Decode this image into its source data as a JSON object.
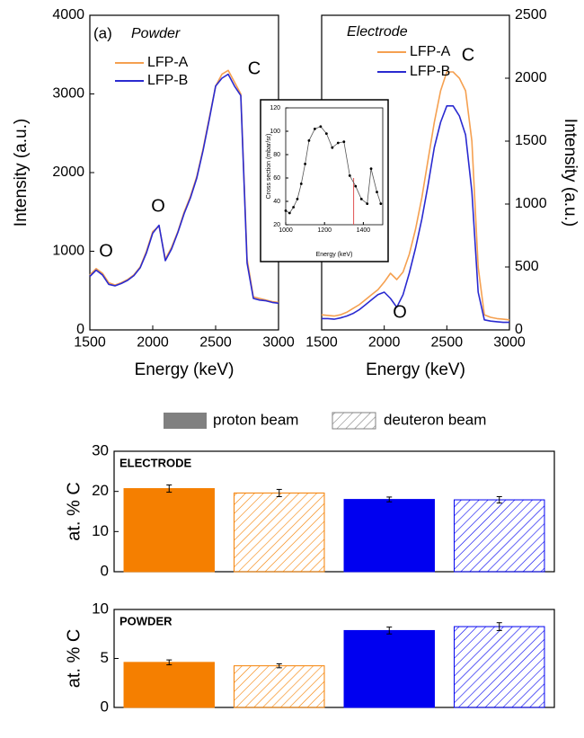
{
  "chart_data": [
    {
      "type": "line",
      "annotations": [
        "(a)",
        "Powder",
        "O",
        "O",
        "C"
      ],
      "x_label": "Energy (keV)",
      "y_label": "Intensity (a.u.)",
      "x": [
        1500,
        1550,
        1600,
        1650,
        1700,
        1750,
        1800,
        1850,
        1900,
        1950,
        2000,
        2050,
        2100,
        2150,
        2200,
        2250,
        2300,
        2350,
        2400,
        2450,
        2500,
        2550,
        2600,
        2650,
        2700,
        2750,
        2800,
        2850,
        2900,
        2950,
        3000
      ],
      "series": [
        {
          "name": "LFP-A",
          "color": "#f5a050",
          "values": [
            700,
            780,
            720,
            600,
            570,
            600,
            640,
            700,
            800,
            1000,
            1250,
            1320,
            900,
            1050,
            1250,
            1500,
            1700,
            1950,
            2300,
            2700,
            3100,
            3250,
            3300,
            3150,
            3000,
            900,
            420,
            400,
            380,
            360,
            350
          ]
        },
        {
          "name": "LFP-B",
          "color": "#2a2ad0",
          "values": [
            680,
            760,
            700,
            580,
            560,
            590,
            630,
            690,
            790,
            980,
            1230,
            1330,
            880,
            1030,
            1240,
            1480,
            1680,
            1930,
            2280,
            2680,
            3100,
            3200,
            3250,
            3100,
            2980,
            850,
            400,
            380,
            370,
            350,
            340
          ]
        }
      ],
      "xlim": [
        1500,
        3000
      ],
      "xticks": [
        1500,
        2000,
        2500,
        3000
      ],
      "ylim": [
        0,
        4000
      ],
      "yticks": [
        0,
        1000,
        2000,
        3000,
        4000
      ]
    },
    {
      "type": "line",
      "annotations": [
        "Electrode",
        "C",
        "O"
      ],
      "x_label": "Energy (keV)",
      "y2_label": "Intensity (a.u.)",
      "x": [
        1500,
        1550,
        1600,
        1650,
        1700,
        1750,
        1800,
        1850,
        1900,
        1950,
        2000,
        2050,
        2100,
        2150,
        2200,
        2250,
        2300,
        2350,
        2400,
        2450,
        2500,
        2550,
        2600,
        2650,
        2700,
        2750,
        2800,
        2850,
        2900,
        2950,
        3000
      ],
      "series": [
        {
          "name": "LFP-A",
          "color": "#f5a050",
          "axis": "y2",
          "values": [
            120,
            115,
            110,
            120,
            140,
            170,
            200,
            240,
            280,
            320,
            380,
            450,
            400,
            460,
            600,
            800,
            1050,
            1350,
            1650,
            1900,
            2050,
            2050,
            2000,
            1900,
            1500,
            500,
            120,
            100,
            90,
            85,
            80
          ]
        },
        {
          "name": "LFP-B",
          "color": "#2a2ad0",
          "axis": "y2",
          "values": [
            90,
            90,
            85,
            95,
            110,
            130,
            160,
            200,
            240,
            280,
            300,
            250,
            180,
            280,
            450,
            650,
            880,
            1150,
            1450,
            1650,
            1780,
            1780,
            1700,
            1550,
            1100,
            300,
            80,
            70,
            65,
            60,
            60
          ]
        }
      ],
      "xlim": [
        1500,
        3000
      ],
      "xticks": [
        1500,
        2000,
        2500,
        3000
      ],
      "y2lim": [
        0,
        2500
      ],
      "y2ticks": [
        0,
        500,
        1000,
        1500,
        2000,
        2500
      ]
    },
    {
      "type": "line",
      "x_label": "Energy (keV)",
      "y_label": "Cross section (mbar/sr)",
      "x": [
        1000,
        1020,
        1040,
        1060,
        1080,
        1100,
        1120,
        1150,
        1180,
        1210,
        1240,
        1270,
        1300,
        1330,
        1360,
        1390,
        1420,
        1440,
        1470,
        1490
      ],
      "series": [
        {
          "color": "#555555",
          "markers": true,
          "values": [
            32,
            30,
            35,
            42,
            55,
            72,
            92,
            102,
            104,
            98,
            86,
            90,
            91,
            62,
            53,
            42,
            38,
            68,
            48,
            38
          ]
        }
      ],
      "vline": {
        "x": 1350,
        "y": 60,
        "color": "#e05050"
      },
      "xlim": [
        1000,
        1500
      ],
      "xticks": [
        1000,
        1200,
        1400
      ],
      "ylim": [
        20,
        120
      ],
      "yticks": [
        20,
        40,
        60,
        80,
        100,
        120
      ]
    },
    {
      "type": "bar",
      "title": "ELECTRODE",
      "y_label": "at. % C",
      "values": [
        20.7,
        19.6,
        18.0,
        17.9
      ],
      "errors": [
        0.9,
        0.9,
        0.6,
        0.8
      ],
      "colors": [
        "#f57f00",
        "#f57f00",
        "#0000f0",
        "#0000f0"
      ],
      "hatched": [
        false,
        true,
        false,
        true
      ],
      "ylim": [
        0,
        30
      ],
      "yticks": [
        0,
        10,
        20,
        30
      ]
    },
    {
      "type": "bar",
      "title": "POWDER",
      "y_label": "at. % C",
      "values": [
        4.6,
        4.25,
        7.85,
        8.25
      ],
      "errors": [
        0.25,
        0.2,
        0.35,
        0.4
      ],
      "colors": [
        "#f57f00",
        "#f57f00",
        "#0000f0",
        "#0000f0"
      ],
      "hatched": [
        false,
        true,
        false,
        true
      ],
      "ylim": [
        0,
        10
      ],
      "yticks": [
        0,
        5,
        10
      ]
    }
  ],
  "legend": [
    {
      "label": "proton beam",
      "color": "#808080",
      "hatched": false
    },
    {
      "label": "deuteron beam",
      "color": "#808080",
      "hatched": true
    }
  ]
}
